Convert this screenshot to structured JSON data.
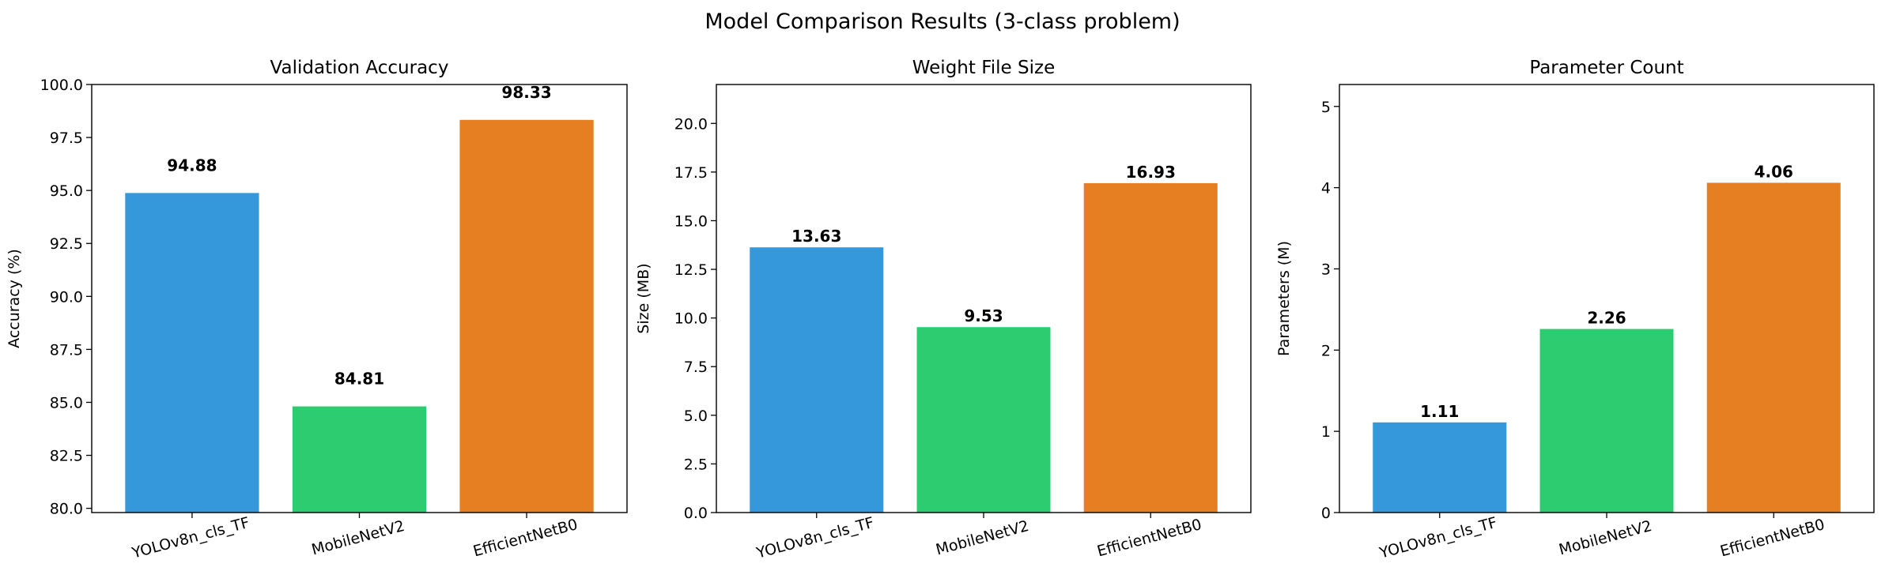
{
  "figure": {
    "suptitle": "Model Comparison Results (3-class problem)"
  },
  "chart_data": [
    {
      "type": "bar",
      "title": "Validation Accuracy",
      "xlabel": "",
      "ylabel": "Accuracy (%)",
      "categories": [
        "YOLOv8n_cls_TF",
        "MobileNetV2",
        "EfficientNetB0"
      ],
      "values": [
        94.88,
        84.81,
        98.33
      ],
      "value_labels": [
        "94.88",
        "84.81",
        "98.33"
      ],
      "colors": [
        "#3498db",
        "#2ecc71",
        "#e67e22"
      ],
      "ylim": [
        79.8,
        100.0
      ],
      "yticks": [
        80.0,
        82.5,
        85.0,
        87.5,
        90.0,
        92.5,
        95.0,
        97.5,
        100.0
      ],
      "ytick_labels": [
        "80.0",
        "82.5",
        "85.0",
        "87.5",
        "90.0",
        "92.5",
        "95.0",
        "97.5",
        "100.0"
      ],
      "grid": false
    },
    {
      "type": "bar",
      "title": "Weight File Size",
      "xlabel": "",
      "ylabel": "Size (MB)",
      "categories": [
        "YOLOv8n_cls_TF",
        "MobileNetV2",
        "EfficientNetB0"
      ],
      "values": [
        13.63,
        9.53,
        16.93
      ],
      "value_labels": [
        "13.63",
        "9.53",
        "16.93"
      ],
      "colors": [
        "#3498db",
        "#2ecc71",
        "#e67e22"
      ],
      "ylim": [
        0,
        22.0
      ],
      "yticks": [
        0.0,
        2.5,
        5.0,
        7.5,
        10.0,
        12.5,
        15.0,
        17.5,
        20.0
      ],
      "ytick_labels": [
        "0.0",
        "2.5",
        "5.0",
        "7.5",
        "10.0",
        "12.5",
        "15.0",
        "17.5",
        "20.0"
      ],
      "grid": false
    },
    {
      "type": "bar",
      "title": "Parameter Count",
      "xlabel": "",
      "ylabel": "Parameters (M)",
      "categories": [
        "YOLOv8n_cls_TF",
        "MobileNetV2",
        "EfficientNetB0"
      ],
      "values": [
        1.11,
        2.26,
        4.06
      ],
      "value_labels": [
        "1.11",
        "2.26",
        "4.06"
      ],
      "colors": [
        "#3498db",
        "#2ecc71",
        "#e67e22"
      ],
      "ylim": [
        0,
        5.27
      ],
      "yticks": [
        0,
        1,
        2,
        3,
        4,
        5
      ],
      "ytick_labels": [
        "0",
        "1",
        "2",
        "3",
        "4",
        "5"
      ],
      "grid": false
    }
  ]
}
